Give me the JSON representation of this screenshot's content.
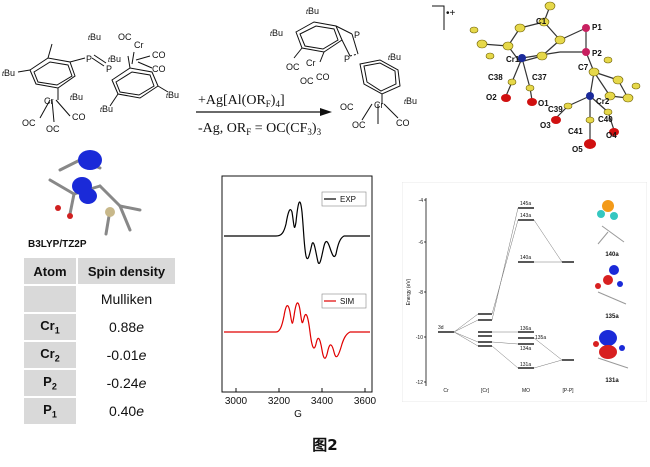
{
  "reaction": {
    "reagent": "+Ag[Al(OR",
    "reagent_sub": "F",
    "reagent_tail": ")",
    "reagent_sub2": "4",
    "reagent_close": "]",
    "byproduct": "-Ag, OR",
    "byproduct_sub": "F",
    "byproduct_tail": " = OC(CF",
    "byproduct_sub2": "3",
    "byproduct_close": ")",
    "byproduct_sub3": "3",
    "charge": "•+",
    "tbu": "Bu",
    "tbu_prefix": "t",
    "p": "P",
    "cr": "Cr",
    "co": "CO",
    "oc": "OC"
  },
  "crystal_labels": [
    "C1",
    "P1",
    "P2",
    "Cr1",
    "C38",
    "C37",
    "O2",
    "O1",
    "C7",
    "Cr2",
    "C39",
    "C40",
    "O3",
    "C41",
    "O4",
    "O5"
  ],
  "method_label": "B3LYP/TZ2P",
  "spin_table": {
    "header_atom": "Atom",
    "header_value": "Spin density",
    "subheader": "Mulliken",
    "rows": [
      {
        "atom": "Cr",
        "sub": "1",
        "value": "0.88",
        "unit": "e"
      },
      {
        "atom": "Cr",
        "sub": "2",
        "value": "-0.01",
        "unit": "e"
      },
      {
        "atom": "P",
        "sub": "2",
        "value": "-0.24",
        "unit": "e"
      },
      {
        "atom": "P",
        "sub": "1",
        "value": "0.40",
        "unit": "e"
      }
    ]
  },
  "epr": {
    "legend_exp": "EXP",
    "legend_sim": "SIM",
    "xlabel": "G",
    "xticks": [
      "3000",
      "3200",
      "3400",
      "3600"
    ],
    "colors": {
      "exp": "#000000",
      "sim": "#e00000"
    }
  },
  "mo_diagram": {
    "ylabel": "Energy (eV)",
    "yticks": [
      "-4",
      "-6",
      "-8",
      "-10",
      "-12"
    ],
    "columns": [
      "Cr",
      "[Cr]",
      "MO",
      "[P-P]"
    ],
    "levels_mo": [
      "145a",
      "143a",
      "140a",
      "136a",
      "135a",
      "134a",
      "131a"
    ],
    "label_3d": "3d",
    "orbital_labels": [
      "140a",
      "135a",
      "131a"
    ]
  },
  "caption": "图2"
}
